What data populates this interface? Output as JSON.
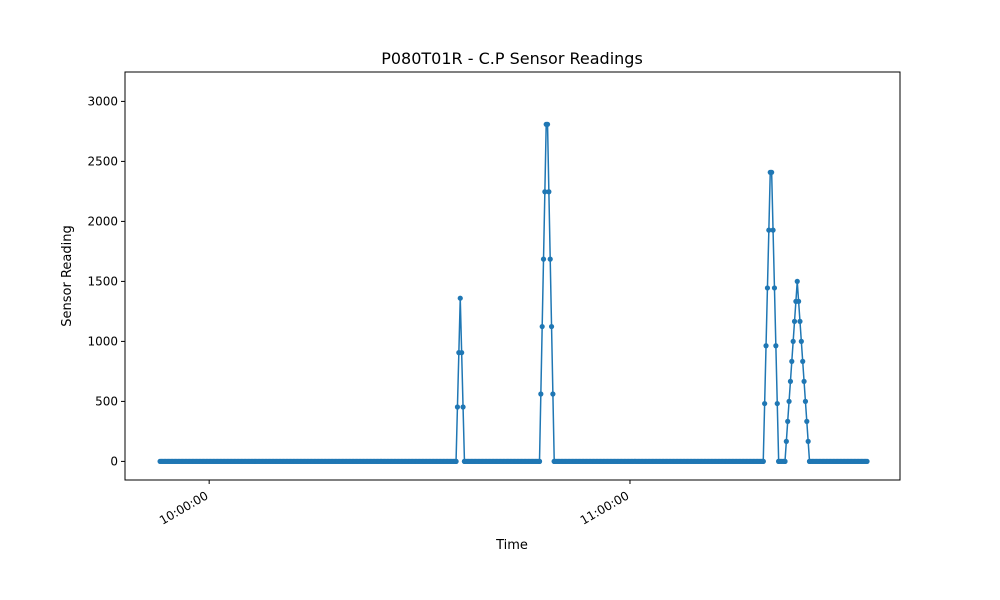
{
  "chart_data": {
    "type": "line",
    "title": "P080T01R - C.P Sensor Readings",
    "xlabel": "Time",
    "ylabel": "Sensor Reading",
    "x_ticks": [
      {
        "label": "10:00:00",
        "minute": 0
      },
      {
        "label": "11:00:00",
        "minute": 60
      }
    ],
    "y_ticks": [
      0,
      500,
      1000,
      1500,
      2000,
      2500,
      3000
    ],
    "xlim_minutes": [
      -12,
      98.5
    ],
    "ylim": [
      -155,
      3245
    ],
    "marker": "circle",
    "grid": false,
    "color": "#1f77b4",
    "series": [
      {
        "segments": [
          {
            "shape": "flat",
            "t0": -7.0,
            "t1": 35.2,
            "value": 0
          },
          {
            "shape": "spike",
            "t0": 35.2,
            "t1": 36.4,
            "peak": 1360
          },
          {
            "shape": "flat",
            "t0": 36.4,
            "t1": 47.1,
            "value": 0
          },
          {
            "shape": "spike",
            "t0": 47.1,
            "t1": 49.2,
            "peak": 3090
          },
          {
            "shape": "flat",
            "t0": 49.2,
            "t1": 79.0,
            "value": 0
          },
          {
            "shape": "spike",
            "t0": 79.0,
            "t1": 81.2,
            "peak": 2650
          },
          {
            "shape": "flat",
            "t0": 81.2,
            "t1": 82.1,
            "value": 0
          },
          {
            "shape": "spike",
            "t0": 82.1,
            "t1": 85.6,
            "peak": 1500
          },
          {
            "shape": "flat",
            "t0": 85.6,
            "t1": 93.8,
            "value": 0
          }
        ]
      }
    ]
  }
}
